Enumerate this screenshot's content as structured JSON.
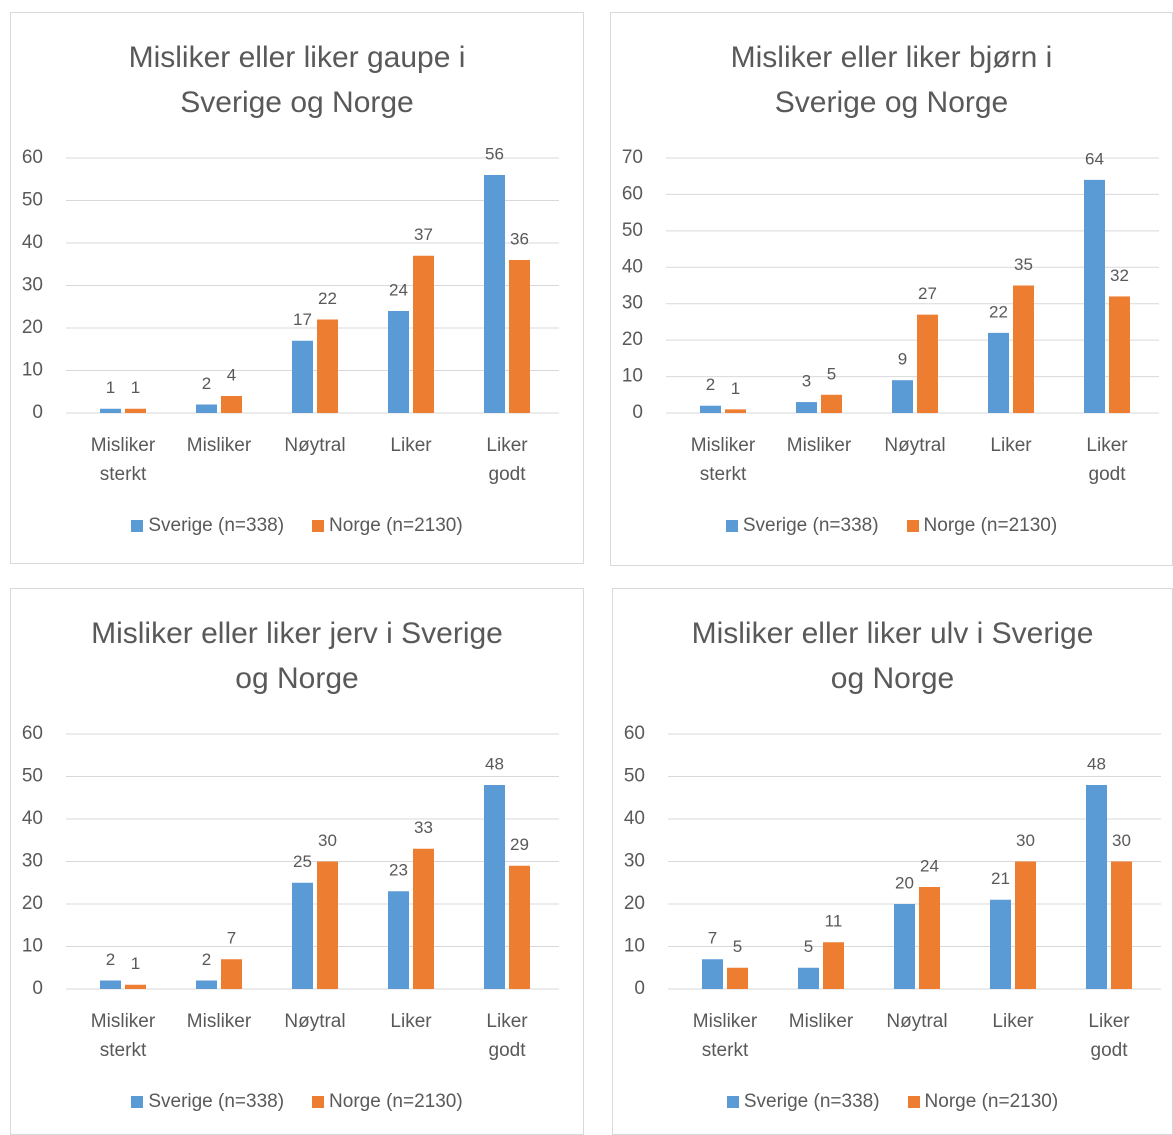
{
  "chart_data": [
    {
      "type": "bar",
      "title": "Misliker eller liker gaupe i Sverige og Norge",
      "categories": [
        "Misliker sterkt",
        "Misliker",
        "Nøytral",
        "Liker",
        "Liker godt"
      ],
      "series": [
        {
          "name": "Sverige (n=338)",
          "color": "#5b9bd5",
          "values": [
            1,
            2,
            17,
            24,
            56
          ]
        },
        {
          "name": "Norge (n=2130)",
          "color": "#ed7d31",
          "values": [
            1,
            4,
            22,
            37,
            36
          ]
        }
      ],
      "ylim": [
        0,
        60
      ],
      "yticks": [
        0,
        10,
        20,
        30,
        40,
        50,
        60
      ],
      "grid": true,
      "legend": "bottom"
    },
    {
      "type": "bar",
      "title": "Misliker eller liker bjørn i Sverige og Norge",
      "categories": [
        "Misliker sterkt",
        "Misliker",
        "Nøytral",
        "Liker",
        "Liker godt"
      ],
      "series": [
        {
          "name": "Sverige (n=338)",
          "color": "#5b9bd5",
          "values": [
            2,
            3,
            9,
            22,
            64
          ]
        },
        {
          "name": "Norge (n=2130)",
          "color": "#ed7d31",
          "values": [
            1,
            5,
            27,
            35,
            32
          ]
        }
      ],
      "ylim": [
        0,
        70
      ],
      "yticks": [
        0,
        10,
        20,
        30,
        40,
        50,
        60,
        70
      ],
      "grid": true,
      "legend": "bottom"
    },
    {
      "type": "bar",
      "title": "Misliker eller liker jerv i Sverige og Norge",
      "categories": [
        "Misliker sterkt",
        "Misliker",
        "Nøytral",
        "Liker",
        "Liker godt"
      ],
      "series": [
        {
          "name": "Sverige (n=338)",
          "color": "#5b9bd5",
          "values": [
            2,
            2,
            25,
            23,
            48
          ]
        },
        {
          "name": "Norge (n=2130)",
          "color": "#ed7d31",
          "values": [
            1,
            7,
            30,
            33,
            29
          ]
        }
      ],
      "ylim": [
        0,
        60
      ],
      "yticks": [
        0,
        10,
        20,
        30,
        40,
        50,
        60
      ],
      "grid": true,
      "legend": "bottom"
    },
    {
      "type": "bar",
      "title": "Misliker eller liker ulv i Sverige og Norge",
      "categories": [
        "Misliker sterkt",
        "Misliker",
        "Nøytral",
        "Liker",
        "Liker godt"
      ],
      "series": [
        {
          "name": "Sverige (n=338)",
          "color": "#5b9bd5",
          "values": [
            7,
            5,
            20,
            21,
            48
          ]
        },
        {
          "name": "Norge (n=2130)",
          "color": "#ed7d31",
          "values": [
            5,
            11,
            24,
            30,
            30
          ]
        }
      ],
      "ylim": [
        0,
        60
      ],
      "yticks": [
        0,
        10,
        20,
        30,
        40,
        50,
        60
      ],
      "grid": true,
      "legend": "bottom"
    }
  ]
}
